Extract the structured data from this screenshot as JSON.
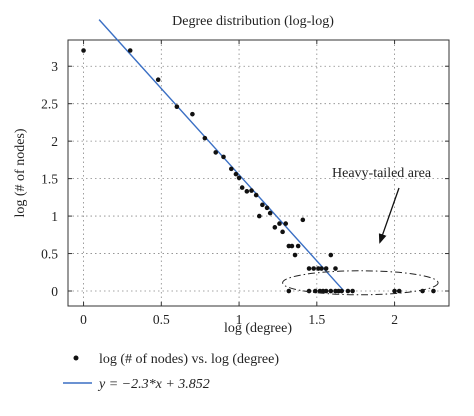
{
  "chart_data": {
    "type": "scatter",
    "title": "Degree distribution (log-log)",
    "xlabel": "log (degree)",
    "ylabel": "log (# of nodes)",
    "xlim": [
      -0.1,
      2.35
    ],
    "ylim": [
      -0.2,
      3.35
    ],
    "xticks": [
      "0",
      "0.5",
      "1",
      "1.5",
      "2"
    ],
    "yticks": [
      "0",
      "0.5",
      "1",
      "1.5",
      "2",
      "2.5",
      "3"
    ],
    "xtick_values": [
      0,
      0.5,
      1,
      1.5,
      2
    ],
    "ytick_values": [
      0,
      0.5,
      1,
      1.5,
      2,
      2.5,
      3
    ],
    "grid": "dotted",
    "series": [
      {
        "name": "log (# of nodes) vs. log (degree)",
        "kind": "points",
        "color": "#111111",
        "points": [
          [
            0.0,
            3.21
          ],
          [
            0.3,
            3.21
          ],
          [
            0.48,
            2.82
          ],
          [
            0.6,
            2.46
          ],
          [
            0.7,
            2.36
          ],
          [
            0.78,
            2.04
          ],
          [
            0.85,
            1.85
          ],
          [
            0.9,
            1.79
          ],
          [
            0.95,
            1.63
          ],
          [
            0.98,
            1.56
          ],
          [
            1.0,
            1.51
          ],
          [
            1.02,
            1.38
          ],
          [
            1.05,
            1.33
          ],
          [
            1.08,
            1.34
          ],
          [
            1.11,
            1.28
          ],
          [
            1.13,
            1.0
          ],
          [
            1.15,
            1.15
          ],
          [
            1.18,
            1.11
          ],
          [
            1.2,
            1.04
          ],
          [
            1.23,
            0.85
          ],
          [
            1.26,
            0.9
          ],
          [
            1.28,
            0.79
          ],
          [
            1.3,
            0.9
          ],
          [
            1.32,
            0.6
          ],
          [
            1.34,
            0.6
          ],
          [
            1.36,
            0.48
          ],
          [
            1.38,
            0.6
          ],
          [
            1.41,
            0.95
          ],
          [
            1.45,
            0.3
          ],
          [
            1.48,
            0.3
          ],
          [
            1.51,
            0.3
          ],
          [
            1.53,
            0.3
          ],
          [
            1.56,
            0.3
          ],
          [
            1.59,
            0.48
          ],
          [
            1.62,
            0.3
          ],
          [
            1.32,
            0.0
          ],
          [
            1.45,
            0.0
          ],
          [
            1.49,
            0.0
          ],
          [
            1.52,
            0.0
          ],
          [
            1.54,
            0.0
          ],
          [
            1.56,
            0.0
          ],
          [
            1.59,
            0.0
          ],
          [
            1.62,
            0.0
          ],
          [
            1.64,
            0.0
          ],
          [
            1.66,
            0.0
          ],
          [
            1.7,
            0.0
          ],
          [
            1.73,
            0.0
          ],
          [
            2.0,
            0.0
          ],
          [
            2.03,
            0.0
          ],
          [
            2.18,
            0.0
          ],
          [
            2.25,
            0.0
          ]
        ]
      },
      {
        "name": "y = −2.3*x + 3.852",
        "kind": "line",
        "color": "#3a6fc4",
        "slope": -2.3,
        "intercept": 3.852,
        "x_range": [
          0.1,
          1.675
        ]
      }
    ],
    "annotation": {
      "text": "Heavy-tailed area",
      "ellipse_center": [
        1.78,
        0.11
      ],
      "ellipse_radii": [
        0.5,
        0.16
      ]
    },
    "legend_placement": "bottom-left, below plot"
  }
}
